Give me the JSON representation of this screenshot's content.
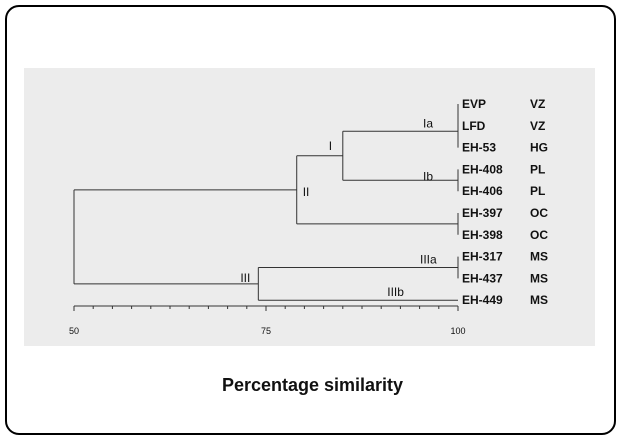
{
  "diagram": {
    "type": "dendrogram",
    "axis_title": "Percentage similarity",
    "axis": {
      "min": 50,
      "max": 100,
      "ticks": [
        50,
        75,
        100
      ]
    },
    "leaves": [
      {
        "name": "EVP",
        "code": "VZ"
      },
      {
        "name": "LFD",
        "code": "VZ"
      },
      {
        "name": "EH-53",
        "code": "HG"
      },
      {
        "name": "EH-408",
        "code": "PL"
      },
      {
        "name": "EH-406",
        "code": "PL"
      },
      {
        "name": "EH-397",
        "code": "OC"
      },
      {
        "name": "EH-398",
        "code": "OC"
      },
      {
        "name": "EH-317",
        "code": "MS"
      },
      {
        "name": "EH-437",
        "code": "MS"
      },
      {
        "name": "EH-449",
        "code": "MS"
      }
    ],
    "clusters": [
      {
        "id": "c_evp_lfd",
        "children": [
          0,
          1
        ],
        "similarity": 100
      },
      {
        "id": "c_ia",
        "children": [
          "c_evp_lfd",
          2
        ],
        "similarity": 100,
        "label": "Ia"
      },
      {
        "id": "c_ib",
        "children": [
          3,
          4
        ],
        "similarity": 100,
        "label": "Ib"
      },
      {
        "id": "c_i",
        "children": [
          "c_ia",
          "c_ib"
        ],
        "similarity": 85,
        "label": "I"
      },
      {
        "id": "c_ii_pair",
        "children": [
          5,
          6
        ],
        "similarity": 100
      },
      {
        "id": "c_i_ii",
        "children": [
          "c_i",
          "c_ii_pair"
        ],
        "similarity": 79,
        "label": "II"
      },
      {
        "id": "c_iiia",
        "children": [
          7,
          8
        ],
        "similarity": 100,
        "label": "IIIa"
      },
      {
        "id": "c_iii",
        "children": [
          "c_iiia",
          9
        ],
        "similarity": 74,
        "label": "III"
      },
      {
        "id": "c_root",
        "children": [
          "c_i_ii",
          "c_iii"
        ],
        "similarity": 50
      }
    ],
    "branch_labels": [
      {
        "text": "IIIb",
        "similarity_at": 96
      }
    ]
  }
}
